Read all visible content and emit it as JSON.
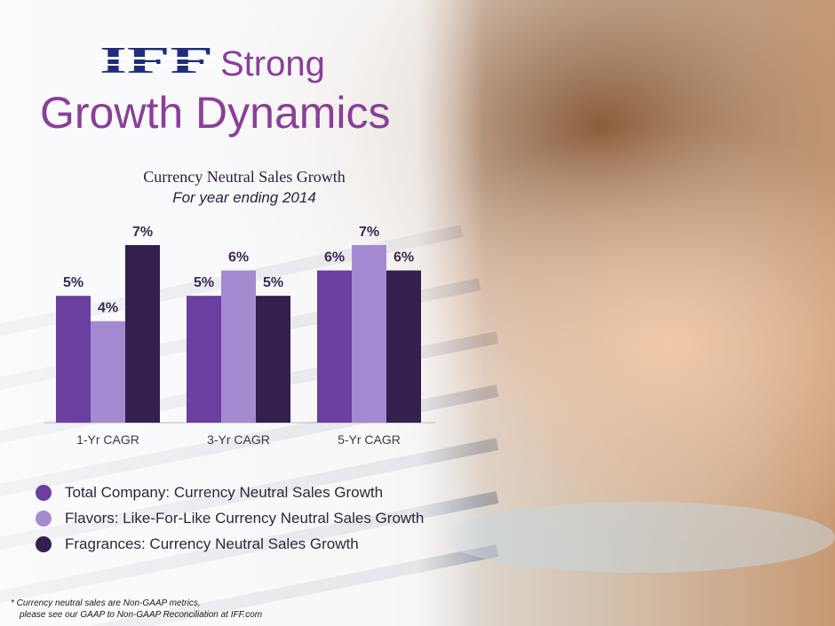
{
  "header": {
    "logo_text": "IFF",
    "title_word": "Strong",
    "title_line2": "Growth Dynamics"
  },
  "chart_data": {
    "type": "bar",
    "title": "Currency Neutral Sales Growth",
    "subtitle": "For year ending 2014",
    "categories": [
      "1-Yr CAGR",
      "3-Yr CAGR",
      "5-Yr CAGR"
    ],
    "series": [
      {
        "name": "Total Company: Currency Neutral Sales Growth",
        "values": [
          5,
          5,
          6
        ],
        "labels": [
          "5%",
          "5%",
          "6%"
        ],
        "color": "#6a3f9f"
      },
      {
        "name": "Flavors: Like-For-Like Currency Neutral Sales Growth",
        "values": [
          4,
          6,
          7
        ],
        "labels": [
          "4%",
          "6%",
          "7%"
        ],
        "color": "#a48ad1"
      },
      {
        "name": "Fragrances: Currency Neutral Sales Growth",
        "values": [
          7,
          5,
          6
        ],
        "labels": [
          "7%",
          "5%",
          "6%"
        ],
        "color": "#33204f"
      }
    ],
    "ylim": [
      0,
      7
    ],
    "grid": false,
    "legend": "bottom",
    "xlabel": "",
    "ylabel": ""
  },
  "footnote": {
    "line1": "* Currency neutral sales are Non-GAAP metrics,",
    "line2": "please see our GAAP to Non-GAAP Reconciliation at IFF.com"
  },
  "colors": {
    "accent": "#8a3f98"
  }
}
